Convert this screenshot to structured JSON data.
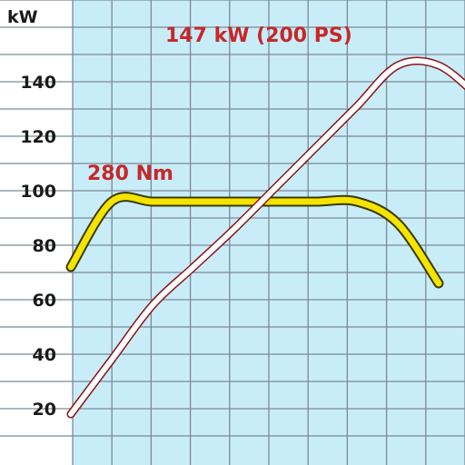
{
  "chart_data": {
    "type": "line",
    "ylabel": "kW",
    "yticks": [
      20,
      40,
      60,
      80,
      100,
      120,
      140
    ],
    "ylim": [
      10,
      160
    ],
    "grid": true,
    "annotations": [
      {
        "text": "147 kW (200 PS)",
        "series": "power"
      },
      {
        "text": "280 Nm",
        "series": "torque"
      }
    ],
    "series": [
      {
        "id": "power",
        "color": "#ffffff",
        "outline_color": "#8b1414",
        "points": [
          [
            0,
            18
          ],
          [
            1,
            38
          ],
          [
            2,
            58
          ],
          [
            3,
            72
          ],
          [
            4,
            86
          ],
          [
            5,
            101
          ],
          [
            6,
            116
          ],
          [
            7,
            131
          ],
          [
            8,
            146
          ],
          [
            9,
            146
          ],
          [
            10,
            134
          ]
        ]
      },
      {
        "id": "torque",
        "color": "#f5e400",
        "outline_color": "#3a3a00",
        "points": [
          [
            0,
            72
          ],
          [
            1,
            96
          ],
          [
            2,
            96
          ],
          [
            3,
            96
          ],
          [
            4,
            96
          ],
          [
            5,
            96
          ],
          [
            6,
            96
          ],
          [
            7,
            96
          ],
          [
            8,
            88
          ],
          [
            9,
            66
          ]
        ]
      }
    ]
  }
}
